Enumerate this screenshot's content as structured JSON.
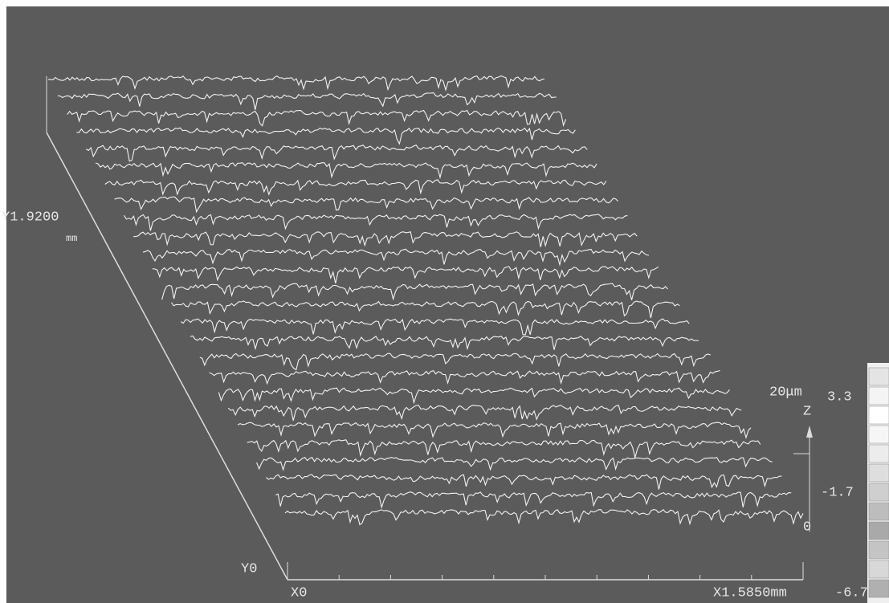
{
  "axes": {
    "y_max": "Y1.9200",
    "y_unit": "mm",
    "y_min": "Y0",
    "x_min": "X0",
    "x_max": "X1.5850mm",
    "z_scale": "20μm",
    "z_label": "Z",
    "z_zero": "0"
  },
  "color_scale": {
    "top": "3.3",
    "middle": "-1.7",
    "bottom": "-6.7"
  }
}
